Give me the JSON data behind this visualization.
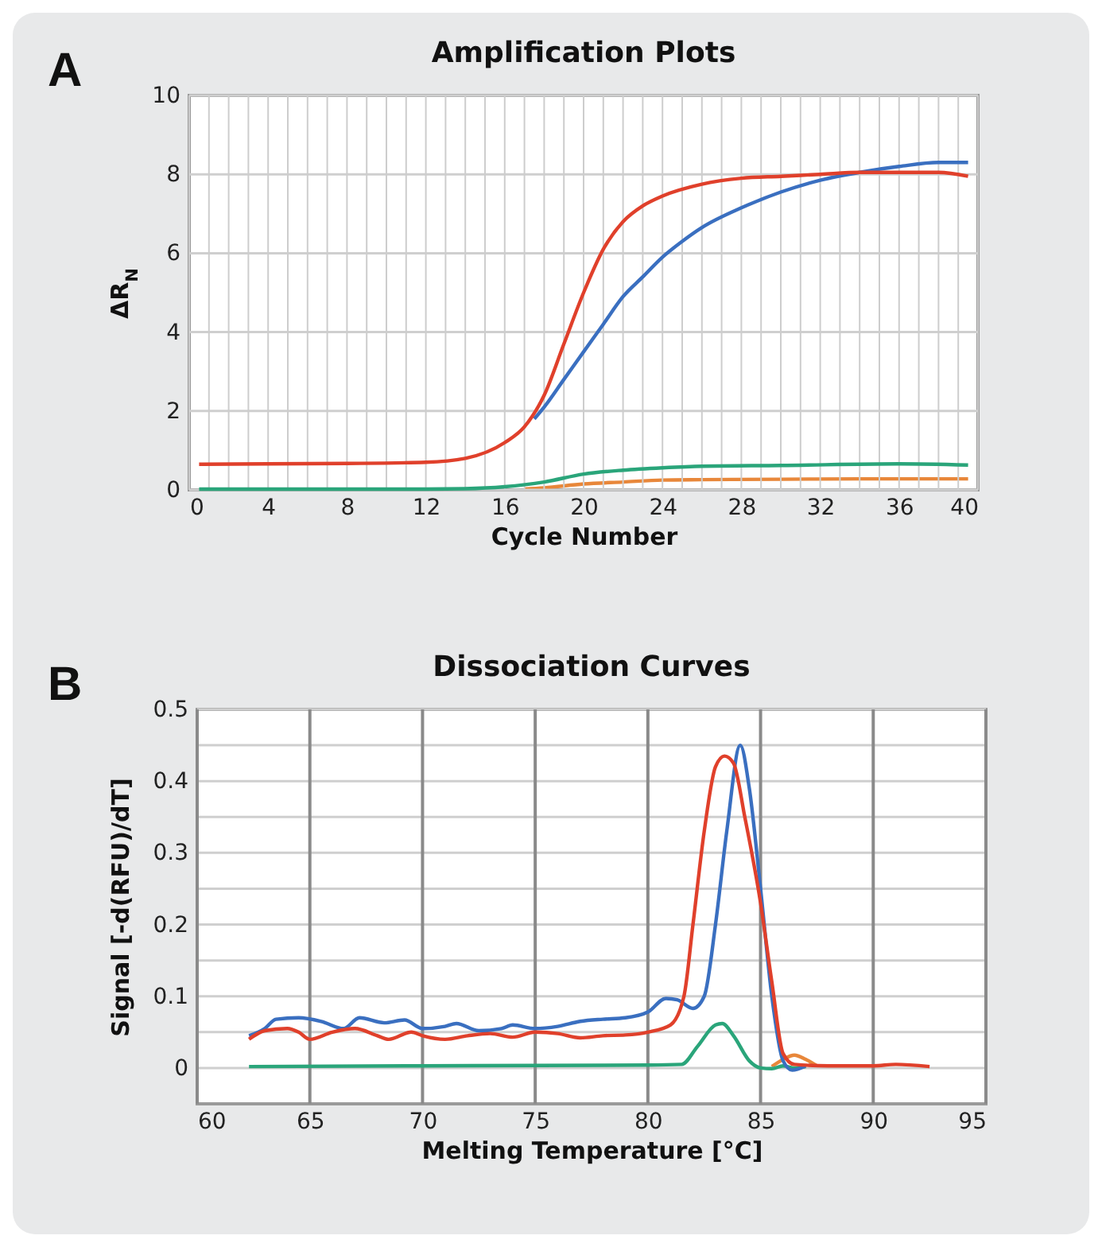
{
  "chart_data": [
    {
      "type": "line",
      "title": "Amplification Plots",
      "xlabel": "Cycle Number",
      "ylabel": "ΔR$_{N}$",
      "annotations": [
        "A"
      ],
      "grid": true,
      "xlim": [
        0,
        40
      ],
      "ylim": [
        0,
        10
      ],
      "xticks": [
        0,
        {
          "value": 1,
          "label": null
        },
        {
          "value": 2,
          "label": null
        },
        {
          "value": 3,
          "label": null
        },
        4,
        {
          "value": 5,
          "label": null
        },
        {
          "value": 6,
          "label": null
        },
        {
          "value": 7,
          "label": null
        },
        8,
        {
          "value": 9,
          "label": null
        },
        {
          "value": 10,
          "label": null
        },
        {
          "value": 11,
          "label": null
        },
        12,
        {
          "value": 13,
          "label": null
        },
        {
          "value": 14,
          "label": null
        },
        {
          "value": 15,
          "label": null
        },
        16,
        {
          "value": 17,
          "label": null
        },
        {
          "value": 18,
          "label": null
        },
        {
          "value": 19,
          "label": null
        },
        20,
        {
          "value": 21,
          "label": null
        },
        {
          "value": 22,
          "label": null
        },
        {
          "value": 23,
          "label": null
        },
        24,
        {
          "value": 25,
          "label": null
        },
        {
          "value": 26,
          "label": null
        },
        {
          "value": 27,
          "label": null
        },
        28,
        {
          "value": 29,
          "label": null
        },
        {
          "value": 30,
          "label": null
        },
        {
          "value": 31,
          "label": null
        },
        32,
        {
          "value": 33,
          "label": null
        },
        {
          "value": 34,
          "label": null
        },
        {
          "value": 35,
          "label": null
        },
        36,
        {
          "value": 37,
          "label": null
        },
        {
          "value": 38,
          "label": null
        },
        {
          "value": 39,
          "label": null
        },
        40
      ],
      "yticks": [
        0,
        2,
        4,
        6,
        8,
        10
      ],
      "series": [
        {
          "color": "#e8873a",
          "x": [
            17,
            18,
            20,
            22,
            24,
            26,
            30,
            34,
            39.5
          ],
          "values": [
            0.02,
            0.05,
            0.15,
            0.2,
            0.25,
            0.26,
            0.27,
            0.28,
            0.28
          ]
        },
        {
          "color": "#2aa57a",
          "x": [
            0.5,
            4,
            8,
            12,
            14,
            16,
            18,
            20,
            22,
            24,
            26,
            30,
            36,
            39.5
          ],
          "values": [
            0.02,
            0.02,
            0.02,
            0.02,
            0.03,
            0.08,
            0.2,
            0.4,
            0.5,
            0.56,
            0.6,
            0.62,
            0.66,
            0.63
          ]
        },
        {
          "color": "#3a6fc0",
          "x": [
            17.5,
            18,
            19,
            20,
            21,
            22,
            23,
            24,
            25,
            26,
            28,
            30,
            32,
            34,
            36,
            38,
            39.5
          ],
          "values": [
            1.8,
            2.1,
            2.8,
            3.5,
            4.2,
            4.9,
            5.4,
            5.9,
            6.3,
            6.65,
            7.15,
            7.55,
            7.85,
            8.05,
            8.2,
            8.3,
            8.3
          ]
        },
        {
          "color": "#e0402b",
          "x": [
            0.5,
            4,
            8,
            12,
            14,
            16,
            17,
            18,
            19,
            20,
            21,
            22,
            23,
            24,
            26,
            28,
            30,
            32,
            34,
            36,
            38,
            39.5
          ],
          "values": [
            0.65,
            0.66,
            0.67,
            0.7,
            0.8,
            1.2,
            1.6,
            2.4,
            3.7,
            5.0,
            6.1,
            6.8,
            7.2,
            7.45,
            7.75,
            7.9,
            7.95,
            8.0,
            8.05,
            8.05,
            8.05,
            7.95
          ]
        }
      ]
    },
    {
      "type": "line",
      "title": "Dissociation Curves",
      "xlabel": "Melting Temperature [°C]",
      "ylabel": "Signal [-d(RFU)/dT]",
      "annotations": [
        "B"
      ],
      "grid": true,
      "xlim": [
        60,
        95
      ],
      "ylim": [
        -0.05,
        0.5
      ],
      "xticks": [
        60,
        65,
        70,
        75,
        80,
        85,
        90,
        95
      ],
      "yticks": [
        0,
        {
          "value": 0.05,
          "label": null
        },
        0.1,
        {
          "value": 0.15,
          "label": null
        },
        0.2,
        {
          "value": 0.25,
          "label": null
        },
        0.3,
        {
          "value": 0.35,
          "label": null
        },
        0.4,
        {
          "value": 0.45,
          "label": null
        },
        0.5
      ],
      "series": [
        {
          "color": "#e8873a",
          "x": [
            85.5,
            86,
            86.5,
            87,
            87.5
          ],
          "values": [
            0.002,
            0.012,
            0.018,
            0.012,
            0.003
          ]
        },
        {
          "color": "#2aa57a",
          "x": [
            62.3,
            70,
            80,
            81.5,
            82.2,
            83,
            83.3,
            83.8,
            84.5,
            85,
            85.5,
            86,
            86.5,
            87
          ],
          "values": [
            0.002,
            0.003,
            0.004,
            0.005,
            0.03,
            0.06,
            0.062,
            0.045,
            0.01,
            0.0,
            -0.001,
            0.003,
            0.0,
            0.002
          ]
        },
        {
          "color": "#3a6fc0",
          "x": [
            62.3,
            63,
            63.5,
            64.5,
            65.5,
            66.5,
            67.2,
            68.3,
            69.2,
            70,
            71,
            71.5,
            72.5,
            73.5,
            74,
            75,
            76,
            77,
            78,
            79,
            80,
            80.8,
            81.3,
            82,
            82.5,
            83,
            83.5,
            84.1,
            84.5,
            85,
            85.5,
            86,
            86.4,
            87
          ],
          "values": [
            0.045,
            0.055,
            0.068,
            0.07,
            0.065,
            0.055,
            0.07,
            0.063,
            0.067,
            0.055,
            0.058,
            0.062,
            0.052,
            0.055,
            0.06,
            0.055,
            0.058,
            0.065,
            0.068,
            0.07,
            0.078,
            0.097,
            0.095,
            0.083,
            0.1,
            0.2,
            0.33,
            0.45,
            0.39,
            0.25,
            0.1,
            0.01,
            -0.003,
            0.003
          ]
        },
        {
          "color": "#e0402b",
          "x": [
            62.3,
            63,
            64,
            64.5,
            65,
            66,
            67,
            68,
            68.5,
            69.5,
            70,
            71,
            72,
            73,
            74,
            75,
            76,
            77,
            78,
            79,
            80,
            81,
            81.6,
            82,
            82.5,
            83,
            83.4,
            83.8,
            84.3,
            85,
            85.5,
            86,
            86.5,
            88,
            90,
            91,
            92.5
          ],
          "values": [
            0.04,
            0.052,
            0.055,
            0.05,
            0.04,
            0.05,
            0.055,
            0.045,
            0.04,
            0.05,
            0.045,
            0.04,
            0.045,
            0.048,
            0.043,
            0.05,
            0.048,
            0.042,
            0.045,
            0.046,
            0.05,
            0.06,
            0.1,
            0.2,
            0.33,
            0.42,
            0.435,
            0.425,
            0.35,
            0.23,
            0.12,
            0.02,
            0.005,
            0.003,
            0.003,
            0.005,
            0.002
          ]
        }
      ]
    }
  ]
}
